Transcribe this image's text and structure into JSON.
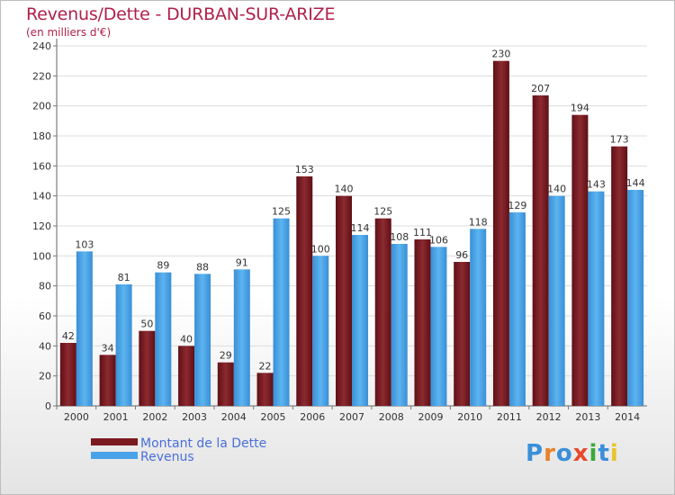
{
  "header": {
    "title": "Revenus/Dette - DURBAN-SUR-ARIZE",
    "subtitle": "(en milliers d'€)"
  },
  "legend": {
    "items": [
      {
        "label": "Montant de la Dette",
        "color": "#7a1a1f"
      },
      {
        "label": "Revenus",
        "color": "#4aa3e8"
      }
    ]
  },
  "logo": {
    "text": "Proxiti",
    "letters": [
      {
        "ch": "P",
        "color": "#3a8fd9"
      },
      {
        "ch": "r",
        "color": "#e8822a"
      },
      {
        "ch": "o",
        "color": "#3a8fd9"
      },
      {
        "ch": "x",
        "color": "#e84a2a"
      },
      {
        "ch": "i",
        "color": "#3aaa3a"
      },
      {
        "ch": "t",
        "color": "#3a8fd9"
      },
      {
        "ch": "i",
        "color": "#e8c42a"
      }
    ]
  },
  "chart_data": {
    "type": "bar",
    "title": "Revenus/Dette - DURBAN-SUR-ARIZE",
    "subtitle": "(en milliers d'€)",
    "categories": [
      "2000",
      "2001",
      "2002",
      "2003",
      "2004",
      "2005",
      "2006",
      "2007",
      "2008",
      "2009",
      "2010",
      "2011",
      "2012",
      "2013",
      "2014"
    ],
    "series": [
      {
        "name": "Montant de la Dette",
        "color": "#7a1a1f",
        "values": [
          42,
          34,
          50,
          40,
          29,
          22,
          153,
          140,
          125,
          111,
          96,
          230,
          207,
          194,
          173
        ]
      },
      {
        "name": "Revenus",
        "color": "#4aa3e8",
        "values": [
          103,
          81,
          89,
          88,
          91,
          125,
          100,
          114,
          108,
          106,
          118,
          129,
          140,
          143,
          144
        ]
      }
    ],
    "ylim": [
      0,
      240
    ],
    "yticks": [
      0,
      20,
      40,
      60,
      80,
      100,
      120,
      140,
      160,
      180,
      200,
      220,
      240
    ],
    "grid": true,
    "legend_position": "bottom-left"
  }
}
